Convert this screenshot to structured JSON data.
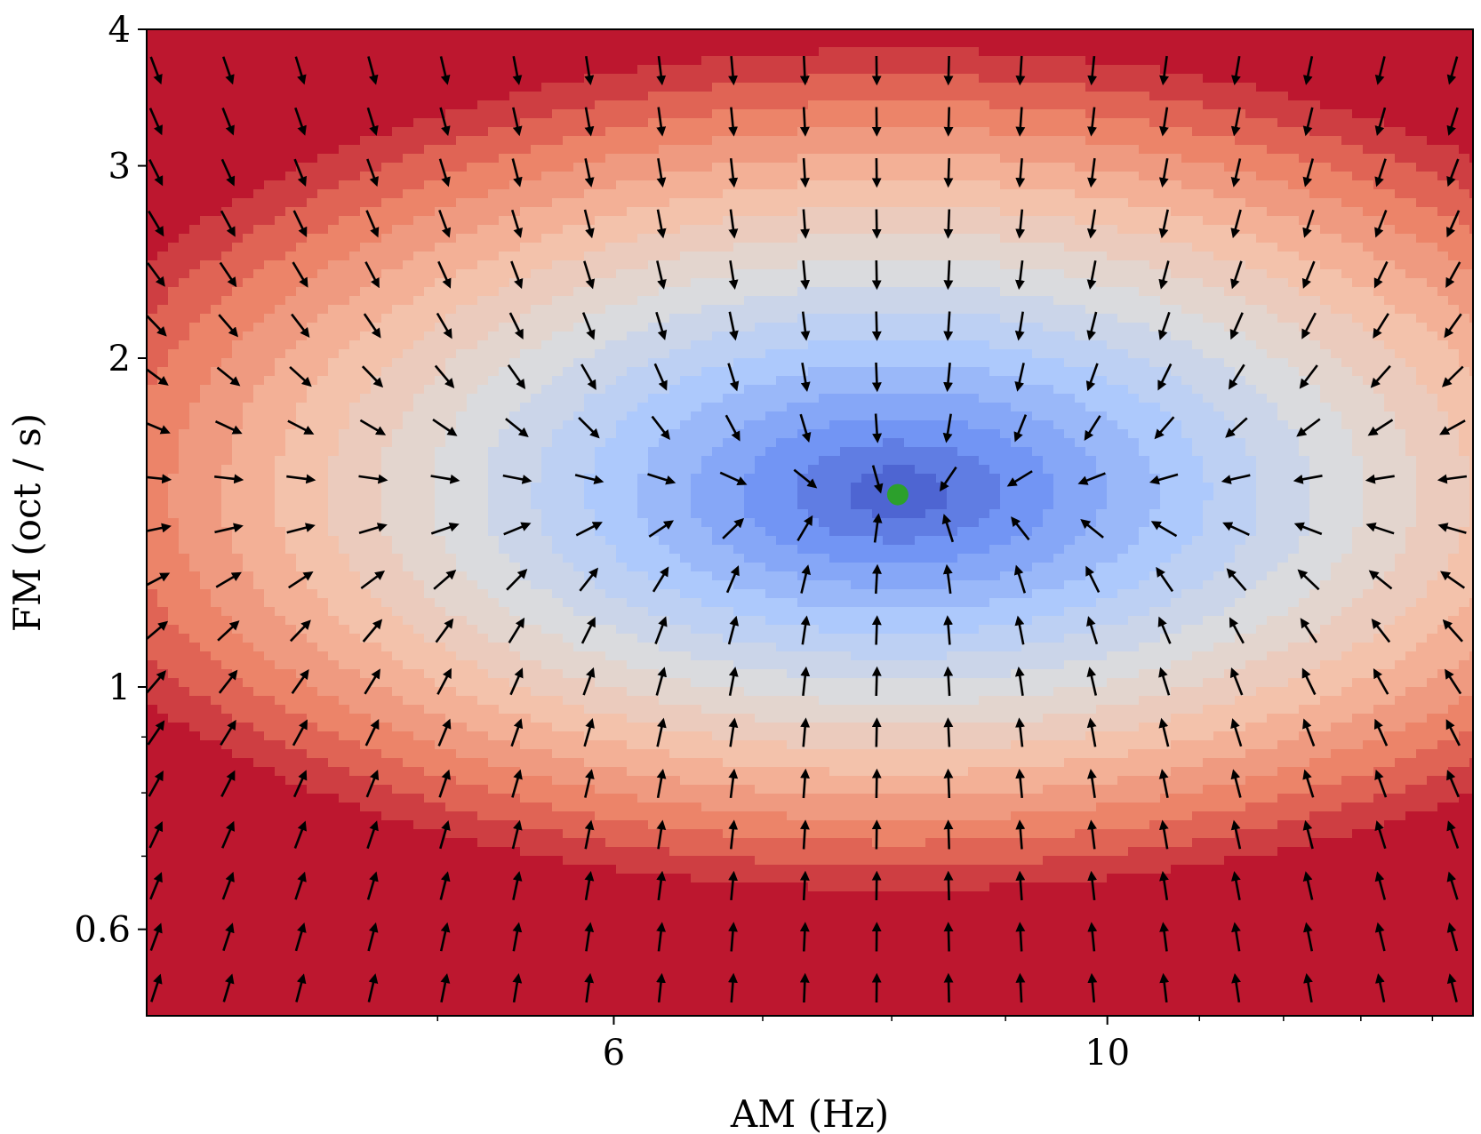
{
  "chart_data": {
    "type": "heatmap",
    "title": "",
    "xlabel": "AM (Hz)",
    "ylabel": "FM (oct / s)",
    "x_scale": "log",
    "y_scale": "log",
    "xlim": [
      3.7,
      14.6
    ],
    "ylim": [
      0.5,
      4.0
    ],
    "x_ticks": [
      {
        "value": 6,
        "label": "6"
      },
      {
        "value": 10,
        "label": "10"
      }
    ],
    "x_minor_ticks": [
      5,
      7,
      8,
      9,
      11,
      12,
      13,
      14
    ],
    "y_ticks": [
      {
        "value": 0.6,
        "label": "0.6"
      },
      {
        "value": 1,
        "label": "1"
      },
      {
        "value": 2,
        "label": "2"
      },
      {
        "value": 3,
        "label": "3"
      },
      {
        "value": 4,
        "label": "4"
      }
    ],
    "y_minor_ticks": [
      0.7,
      0.8,
      0.9
    ],
    "colormap": "coolwarm",
    "colormap_stops": [
      "#3b4cc0",
      "#7396f5",
      "#b0cbfc",
      "#dddcdc",
      "#f6bfa6",
      "#ea7b60",
      "#b40426"
    ],
    "minimum": {
      "am": 8.05,
      "fm": 1.5,
      "marker_color": "#2ca02c"
    },
    "arrow_field": "vectors point toward the minimum (gradient descent)",
    "grid": false,
    "legend": "none"
  }
}
